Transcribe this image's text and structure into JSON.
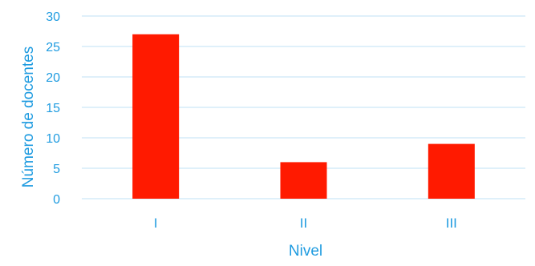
{
  "chart_data": {
    "type": "bar",
    "categories": [
      "I",
      "II",
      "III"
    ],
    "values": [
      27,
      6,
      9
    ],
    "xlabel": "Nivel",
    "ylabel": "Número de docentes",
    "ylim": [
      0,
      30
    ],
    "yticks": [
      0,
      5,
      10,
      15,
      20,
      25,
      30
    ],
    "grid": true,
    "legend": "none",
    "colors": {
      "bar": "#FF1A00",
      "text": "#1E9BE0",
      "grid": "#BFE0F5"
    }
  }
}
